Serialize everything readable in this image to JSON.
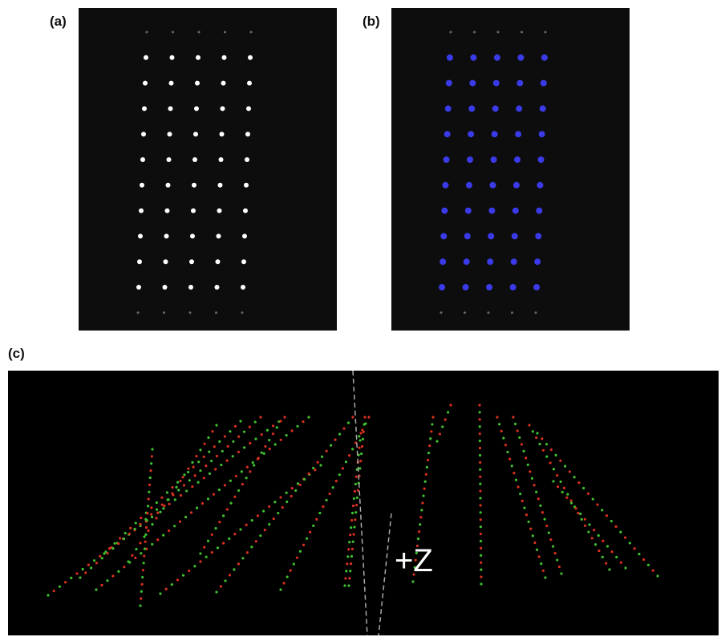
{
  "panels": [
    {
      "label": "(a)"
    },
    {
      "label": "(b)"
    },
    {
      "label": "(c)",
      "annotation": "+Z"
    }
  ]
}
